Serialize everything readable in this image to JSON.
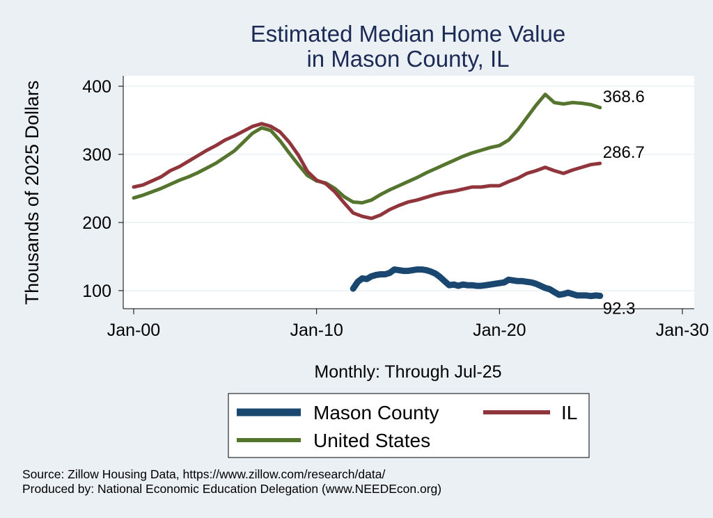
{
  "chart_data": {
    "type": "line",
    "title": [
      "Estimated Median Home Value",
      "in Mason County, IL"
    ],
    "xlabel": "Monthly: Through Jul-25",
    "ylabel": "Thousands of 2025 Dollars",
    "x_range": [
      "2000-01",
      "2030-01"
    ],
    "x_ticks": [
      {
        "date": "2000-01",
        "label": "Jan-00"
      },
      {
        "date": "2010-01",
        "label": "Jan-10"
      },
      {
        "date": "2020-01",
        "label": "Jan-20"
      },
      {
        "date": "2030-01",
        "label": "Jan-30"
      }
    ],
    "ylim": [
      90,
      405
    ],
    "y_ticks": [
      100,
      200,
      300,
      400
    ],
    "grid": true,
    "legend_position": "bottom",
    "series": [
      {
        "name": "Mason County",
        "color": "#1a476f",
        "end_label": "92.3",
        "points": [
          [
            "2012-01",
            103
          ],
          [
            "2012-04",
            113
          ],
          [
            "2012-07",
            118
          ],
          [
            "2012-10",
            117
          ],
          [
            "2013-01",
            121
          ],
          [
            "2013-04",
            123
          ],
          [
            "2013-07",
            124
          ],
          [
            "2013-10",
            124
          ],
          [
            "2014-01",
            126
          ],
          [
            "2014-04",
            131
          ],
          [
            "2014-07",
            130
          ],
          [
            "2014-10",
            129
          ],
          [
            "2015-01",
            129
          ],
          [
            "2015-04",
            130
          ],
          [
            "2015-07",
            131
          ],
          [
            "2015-10",
            131
          ],
          [
            "2016-01",
            130
          ],
          [
            "2016-04",
            128
          ],
          [
            "2016-07",
            125
          ],
          [
            "2016-10",
            120
          ],
          [
            "2017-01",
            114
          ],
          [
            "2017-04",
            108
          ],
          [
            "2017-07",
            109
          ],
          [
            "2017-10",
            107
          ],
          [
            "2018-01",
            109
          ],
          [
            "2018-04",
            108
          ],
          [
            "2018-07",
            108
          ],
          [
            "2018-10",
            107
          ],
          [
            "2019-01",
            107
          ],
          [
            "2019-04",
            108
          ],
          [
            "2019-07",
            109
          ],
          [
            "2019-10",
            110
          ],
          [
            "2020-01",
            111
          ],
          [
            "2020-04",
            112
          ],
          [
            "2020-07",
            116
          ],
          [
            "2020-10",
            115
          ],
          [
            "2021-01",
            114
          ],
          [
            "2021-04",
            114
          ],
          [
            "2021-07",
            113
          ],
          [
            "2021-10",
            112
          ],
          [
            "2022-01",
            110
          ],
          [
            "2022-04",
            107
          ],
          [
            "2022-07",
            104
          ],
          [
            "2022-10",
            102
          ],
          [
            "2023-01",
            98
          ],
          [
            "2023-04",
            94
          ],
          [
            "2023-07",
            95
          ],
          [
            "2023-10",
            97
          ],
          [
            "2024-01",
            95
          ],
          [
            "2024-04",
            93
          ],
          [
            "2024-07",
            93
          ],
          [
            "2024-10",
            93
          ],
          [
            "2025-01",
            92
          ],
          [
            "2025-04",
            93
          ],
          [
            "2025-07",
            92.3
          ]
        ]
      },
      {
        "name": "IL",
        "color": "#90353b",
        "end_label": "286.7",
        "points": [
          [
            "2000-01",
            252
          ],
          [
            "2000-07",
            255
          ],
          [
            "2001-01",
            261
          ],
          [
            "2001-07",
            267
          ],
          [
            "2002-01",
            276
          ],
          [
            "2002-07",
            282
          ],
          [
            "2003-01",
            290
          ],
          [
            "2003-07",
            298
          ],
          [
            "2004-01",
            306
          ],
          [
            "2004-07",
            313
          ],
          [
            "2005-01",
            321
          ],
          [
            "2005-07",
            327
          ],
          [
            "2006-01",
            334
          ],
          [
            "2006-07",
            341
          ],
          [
            "2007-01",
            345
          ],
          [
            "2007-07",
            341
          ],
          [
            "2008-01",
            333
          ],
          [
            "2008-07",
            318
          ],
          [
            "2009-01",
            299
          ],
          [
            "2009-07",
            275
          ],
          [
            "2010-01",
            262
          ],
          [
            "2010-07",
            257
          ],
          [
            "2011-01",
            245
          ],
          [
            "2011-07",
            229
          ],
          [
            "2012-01",
            214
          ],
          [
            "2012-07",
            209
          ],
          [
            "2013-01",
            206
          ],
          [
            "2013-07",
            211
          ],
          [
            "2014-01",
            219
          ],
          [
            "2014-07",
            225
          ],
          [
            "2015-01",
            230
          ],
          [
            "2015-07",
            233
          ],
          [
            "2016-01",
            237
          ],
          [
            "2016-07",
            241
          ],
          [
            "2017-01",
            244
          ],
          [
            "2017-07",
            246
          ],
          [
            "2018-01",
            249
          ],
          [
            "2018-07",
            252
          ],
          [
            "2019-01",
            252
          ],
          [
            "2019-07",
            254
          ],
          [
            "2020-01",
            254
          ],
          [
            "2020-07",
            260
          ],
          [
            "2021-01",
            265
          ],
          [
            "2021-07",
            272
          ],
          [
            "2022-01",
            276
          ],
          [
            "2022-07",
            281
          ],
          [
            "2023-01",
            276
          ],
          [
            "2023-07",
            272
          ],
          [
            "2024-01",
            277
          ],
          [
            "2024-07",
            281
          ],
          [
            "2025-01",
            285
          ],
          [
            "2025-07",
            286.7
          ]
        ]
      },
      {
        "name": "United States",
        "color": "#55752f",
        "end_label": "368.6",
        "points": [
          [
            "2000-01",
            236
          ],
          [
            "2000-07",
            240
          ],
          [
            "2001-01",
            245
          ],
          [
            "2001-07",
            250
          ],
          [
            "2002-01",
            256
          ],
          [
            "2002-07",
            262
          ],
          [
            "2003-01",
            267
          ],
          [
            "2003-07",
            273
          ],
          [
            "2004-01",
            280
          ],
          [
            "2004-07",
            287
          ],
          [
            "2005-01",
            296
          ],
          [
            "2005-07",
            305
          ],
          [
            "2006-01",
            318
          ],
          [
            "2006-07",
            331
          ],
          [
            "2007-01",
            339
          ],
          [
            "2007-07",
            335
          ],
          [
            "2008-01",
            320
          ],
          [
            "2008-07",
            302
          ],
          [
            "2009-01",
            285
          ],
          [
            "2009-07",
            269
          ],
          [
            "2010-01",
            261
          ],
          [
            "2010-07",
            258
          ],
          [
            "2011-01",
            250
          ],
          [
            "2011-07",
            238
          ],
          [
            "2012-01",
            230
          ],
          [
            "2012-07",
            229
          ],
          [
            "2013-01",
            233
          ],
          [
            "2013-07",
            241
          ],
          [
            "2014-01",
            248
          ],
          [
            "2014-07",
            254
          ],
          [
            "2015-01",
            260
          ],
          [
            "2015-07",
            266
          ],
          [
            "2016-01",
            273
          ],
          [
            "2016-07",
            279
          ],
          [
            "2017-01",
            285
          ],
          [
            "2017-07",
            291
          ],
          [
            "2018-01",
            297
          ],
          [
            "2018-07",
            302
          ],
          [
            "2019-01",
            306
          ],
          [
            "2019-07",
            310
          ],
          [
            "2020-01",
            313
          ],
          [
            "2020-07",
            321
          ],
          [
            "2021-01",
            336
          ],
          [
            "2021-07",
            354
          ],
          [
            "2022-01",
            372
          ],
          [
            "2022-07",
            388
          ],
          [
            "2023-01",
            376
          ],
          [
            "2023-07",
            374
          ],
          [
            "2024-01",
            376
          ],
          [
            "2024-07",
            375
          ],
          [
            "2025-01",
            373
          ],
          [
            "2025-07",
            368.6
          ]
        ]
      }
    ]
  },
  "notes": {
    "source": "Source: Zillow Housing Data, https://www.zillow.com/research/data/",
    "produced_by": "Produced by: National Economic Education Delegation (www.NEEDEcon.org)"
  }
}
